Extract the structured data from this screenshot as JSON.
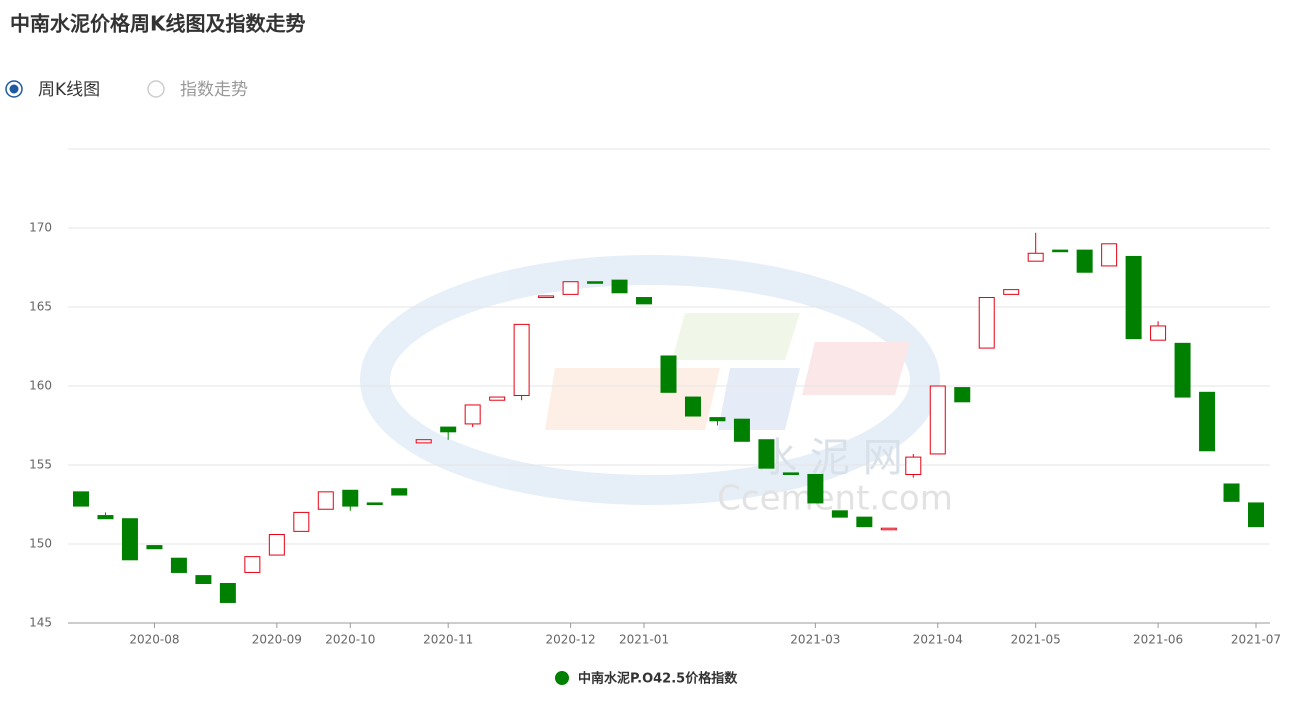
{
  "header": {
    "title": "中南水泥价格周K线图及指数走势"
  },
  "tabs": [
    {
      "label": "周K线图",
      "selected": true
    },
    {
      "label": "指数走势",
      "selected": false
    }
  ],
  "watermark": {
    "name": "水 泥 网",
    "site": "Ccement.com"
  },
  "chart_data": {
    "type": "candlestick",
    "categories": [
      null,
      null,
      null,
      "2020-08",
      null,
      null,
      null,
      null,
      "2020-09",
      null,
      null,
      "2020-10",
      null,
      null,
      null,
      "2020-11",
      null,
      null,
      null,
      null,
      "2020-12",
      null,
      null,
      "2021-01",
      null,
      null,
      null,
      null,
      null,
      null,
      "2021-03",
      null,
      null,
      null,
      null,
      "2021-04",
      null,
      null,
      null,
      "2021-05",
      null,
      null,
      null,
      null,
      "2021-06",
      null,
      null,
      null,
      "2021-07"
    ],
    "series": [
      {
        "name": "中南水泥P.O42.5价格指数",
        "color": "#008000",
        "up_color": "#e60012",
        "open": [
          153.3,
          151.8,
          151.6,
          149.9,
          149.1,
          148,
          147.5,
          148.2,
          149.3,
          150.8,
          152.2,
          153.4,
          152.6,
          153.5,
          156.4,
          157.4,
          157.6,
          159.1,
          159.4,
          165.6,
          165.8,
          166.6,
          166.7,
          165.6,
          161.9,
          159.3,
          158,
          157.9,
          156.6,
          154.5,
          154.4,
          152.1,
          151.7,
          150.9,
          154.4,
          155.7,
          159.9,
          162.4,
          165.8,
          167.9,
          168.6,
          168.6,
          167.6,
          168.2,
          162.9,
          162.7,
          159.6,
          153.8,
          152.6
        ],
        "close": [
          152.4,
          151.6,
          149,
          149.7,
          148.2,
          147.5,
          146.3,
          149.2,
          150.6,
          152,
          153.3,
          152.4,
          152.5,
          153.1,
          156.6,
          157.1,
          158.8,
          159.3,
          163.9,
          165.7,
          166.6,
          166.5,
          165.9,
          165.2,
          159.6,
          158.1,
          157.8,
          156.5,
          154.8,
          154.4,
          152.6,
          151.7,
          151.1,
          151,
          155.5,
          160,
          159,
          165.6,
          166.1,
          168.4,
          168.5,
          167.2,
          169,
          163,
          163.8,
          159.3,
          155.9,
          152.7,
          151.1
        ],
        "high": [
          153.3,
          152,
          151.6,
          149.9,
          149.1,
          148,
          147.5,
          149.2,
          150.6,
          152,
          153.3,
          153.4,
          152.6,
          153.5,
          156.6,
          157.4,
          158.8,
          159.3,
          163.9,
          165.7,
          166.6,
          166.6,
          166.7,
          165.6,
          161.9,
          159.3,
          158,
          157.9,
          156.6,
          154.5,
          154.4,
          152.1,
          151.7,
          151,
          155.7,
          160,
          159.9,
          165.6,
          166.1,
          169.7,
          168.6,
          168.6,
          169,
          168.2,
          164.1,
          162.7,
          159.6,
          153.8,
          152.6
        ],
        "low": [
          152.4,
          151.6,
          149,
          149.7,
          148.2,
          147.5,
          146.3,
          148.2,
          149.3,
          150.8,
          152.2,
          152.1,
          152.5,
          153.1,
          156.4,
          156.6,
          157.4,
          159.1,
          159.1,
          165.6,
          165.8,
          166.5,
          165.9,
          165.2,
          159.6,
          158.1,
          157.5,
          156.5,
          154.8,
          154.4,
          152.6,
          151.7,
          151.1,
          150.9,
          154.2,
          155.7,
          159,
          162.4,
          165.8,
          167.9,
          168.5,
          167.2,
          167.6,
          163,
          162.9,
          159.3,
          155.9,
          152.7,
          151.1
        ]
      }
    ],
    "ylim": [
      145,
      175
    ],
    "yticks": [
      145,
      150,
      155,
      160,
      165,
      170
    ],
    "grid": true,
    "legend": "bottom"
  }
}
